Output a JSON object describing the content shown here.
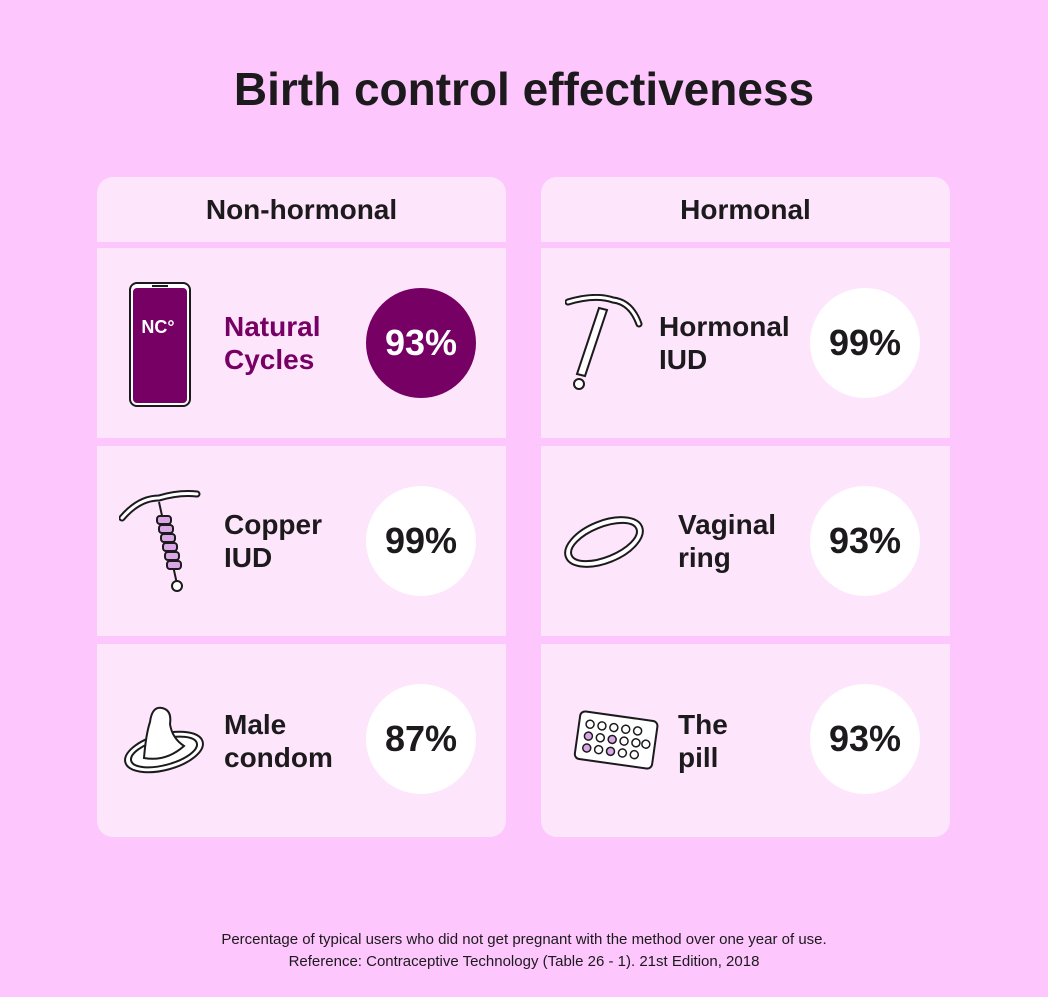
{
  "title": "Birth control effectiveness",
  "columns": [
    {
      "heading": "Non-hormonal",
      "items": [
        {
          "label": [
            "Natural",
            "Cycles"
          ],
          "percent": "93%"
        },
        {
          "label": [
            "Copper",
            "IUD"
          ],
          "percent": "99%"
        },
        {
          "label": [
            "Male",
            "condom"
          ],
          "percent": "87%"
        }
      ]
    },
    {
      "heading": "Hormonal",
      "items": [
        {
          "label": [
            "Hormonal",
            "IUD"
          ],
          "percent": "99%"
        },
        {
          "label": [
            "Vaginal",
            "ring"
          ],
          "percent": "93%"
        },
        {
          "label": [
            "The",
            "pill"
          ],
          "percent": "93%"
        }
      ]
    }
  ],
  "icon_text": "NC°",
  "footer": [
    "Percentage of typical users who did not get pregnant with the method over one year of use.",
    "Reference: Contraceptive Technology (Table 26 - 1). 21st Edition, 2018"
  ]
}
